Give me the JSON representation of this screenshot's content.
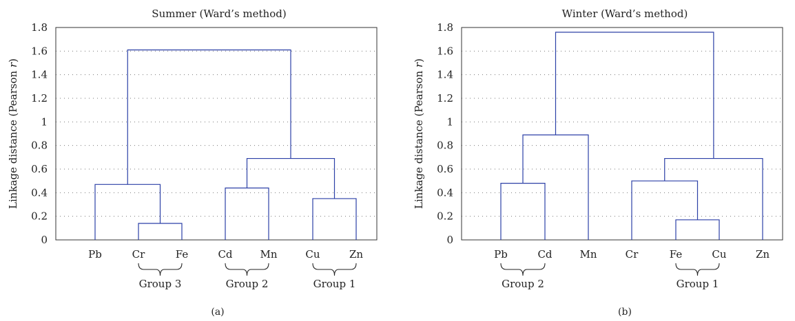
{
  "chart_data": [
    {
      "type": "dendrogram",
      "title": "Summer (Ward’s method)",
      "ylabel_prefix": "Linkage distance (Pearson ",
      "ylabel_italic": "r",
      "ylabel_suffix": ")",
      "caption": "(a)",
      "ylim": [
        0,
        1.8
      ],
      "yticks": [
        "0",
        "0.2",
        "0.4",
        "0.6",
        "0.8",
        "1",
        "1.2",
        "1.4",
        "1.6",
        "1.8"
      ],
      "grid": true,
      "leaves": [
        "Pb",
        "Cr",
        "Fe",
        "Cd",
        "Mn",
        "Cu",
        "Zn"
      ],
      "merges": [
        {
          "left": "Cr",
          "right": "Fe",
          "height": 0.14
        },
        {
          "left": "Cu",
          "right": "Zn",
          "height": 0.35
        },
        {
          "left": "Cd",
          "right": "Mn",
          "height": 0.44
        },
        {
          "left": "Pb",
          "right": "Cr-Fe",
          "height": 0.47
        },
        {
          "left": "Cd-Mn",
          "right": "Cu-Zn",
          "height": 0.69
        },
        {
          "left": "Pb-Cr-Fe",
          "right": "Cd-Mn-Cu-Zn",
          "height": 1.61
        }
      ],
      "groups": [
        {
          "label": "Group 3",
          "from": "Cr",
          "to": "Fe"
        },
        {
          "label": "Group 2",
          "from": "Cd",
          "to": "Mn"
        },
        {
          "label": "Group 1",
          "from": "Cu",
          "to": "Zn"
        }
      ],
      "line_color": "#2b3fa6"
    },
    {
      "type": "dendrogram",
      "title": "Winter (Ward’s method)",
      "ylabel_prefix": "Linkage distance (Pearson ",
      "ylabel_italic": "r",
      "ylabel_suffix": ")",
      "caption": "(b)",
      "ylim": [
        0,
        1.8
      ],
      "yticks": [
        "0",
        "0.2",
        "0.4",
        "0.6",
        "0.8",
        "1",
        "1.2",
        "1.4",
        "1.6",
        "1.8"
      ],
      "grid": true,
      "leaves": [
        "Pb",
        "Cd",
        "Mn",
        "Cr",
        "Fe",
        "Cu",
        "Zn"
      ],
      "merges": [
        {
          "left": "Fe",
          "right": "Cu",
          "height": 0.17
        },
        {
          "left": "Pb",
          "right": "Cd",
          "height": 0.48
        },
        {
          "left": "Cr",
          "right": "Fe-Cu",
          "height": 0.5
        },
        {
          "left": "Cr-Fe-Cu",
          "right": "Zn",
          "height": 0.69
        },
        {
          "left": "Pb-Cd",
          "right": "Mn",
          "height": 0.89
        },
        {
          "left": "Pb-Cd-Mn",
          "right": "Cr-Fe-Cu-Zn",
          "height": 1.76
        }
      ],
      "groups": [
        {
          "label": "Group 2",
          "from": "Pb",
          "to": "Cd"
        },
        {
          "label": "Group 1",
          "from": "Fe",
          "to": "Cu"
        }
      ],
      "line_color": "#2b3fa6"
    }
  ]
}
